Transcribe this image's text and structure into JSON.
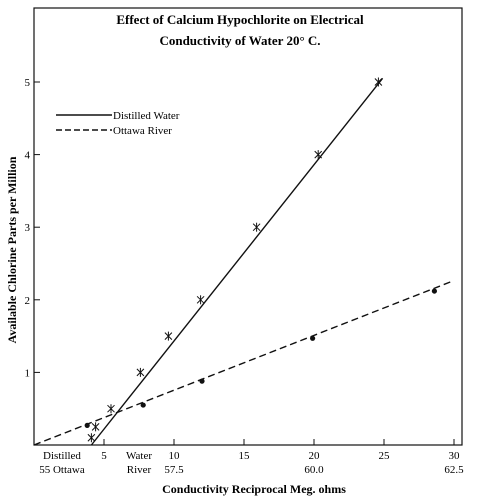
{
  "chart_data": {
    "type": "line",
    "title_line1": "Effect of Calcium Hypochlorite on Electrical",
    "title_line2": "Conductivity of Water 20° C.",
    "xlabel": "Conductivity Reciprocal Meg. ohms",
    "ylabel": "Available Chlorine Parts per Million",
    "xlim": [
      0,
      30
    ],
    "ylim": [
      0,
      5.5
    ],
    "x_ticks_top": [
      "5",
      "10",
      "15",
      "20",
      "25",
      "30"
    ],
    "x_tick_values": [
      5,
      10,
      15,
      20,
      25,
      30
    ],
    "x_ticks_bottom": [
      "57.5",
      "60.0",
      "62.5"
    ],
    "x_tick_bottom_values": [
      10,
      20,
      30
    ],
    "x_extra_labels_top": [
      {
        "text": "Distilled",
        "x": 2
      },
      {
        "text": "Water",
        "x": 7.5
      }
    ],
    "x_extra_labels_bottom": [
      {
        "text": "55 Ottawa",
        "x": 2
      },
      {
        "text": "River",
        "x": 7.5
      }
    ],
    "y_ticks": [
      "1",
      "2",
      "3",
      "4",
      "5"
    ],
    "y_tick_values": [
      1,
      2,
      3,
      4,
      5
    ],
    "grid": false,
    "legend_position": "top-left",
    "series": [
      {
        "name": "Distilled Water",
        "style": "solid",
        "marker": "star",
        "line": [
          [
            4.1,
            0
          ],
          [
            24.9,
            5.05
          ]
        ],
        "points": [
          [
            4.1,
            0.1
          ],
          [
            4.4,
            0.25
          ],
          [
            5.5,
            0.5
          ],
          [
            7.6,
            1.0
          ],
          [
            9.6,
            1.5
          ],
          [
            11.9,
            2.0
          ],
          [
            15.9,
            3.0
          ],
          [
            20.3,
            4.0
          ],
          [
            24.6,
            5.0
          ]
        ]
      },
      {
        "name": "Ottawa River",
        "style": "dashed",
        "marker": "dot",
        "line": [
          [
            0,
            0
          ],
          [
            29.8,
            2.25
          ]
        ],
        "points": [
          [
            3.8,
            0.27
          ],
          [
            7.8,
            0.55
          ],
          [
            12.0,
            0.88
          ],
          [
            19.9,
            1.47
          ],
          [
            28.6,
            2.12
          ]
        ]
      }
    ]
  }
}
